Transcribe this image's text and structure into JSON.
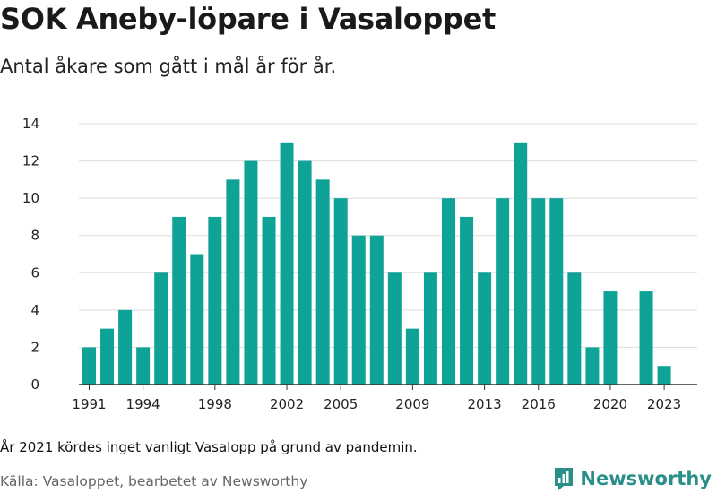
{
  "title": "SOK Aneby-löpare i Vasaloppet",
  "subtitle": "Antal åkare som gått i mål år för år.",
  "note": "År 2021 kördes inget vanligt Vasalopp på grund av pandemin.",
  "source": "Källa: Vasaloppet, bearbetet av Newsworthy",
  "brand": {
    "name": "Newsworthy",
    "color": "#2a8f88",
    "icon": "bar-chart-logo-icon"
  },
  "chart_data": {
    "type": "bar",
    "bar_color": "#0ea396",
    "grid": true,
    "ylim": [
      0,
      14
    ],
    "y_ticks": [
      0,
      2,
      4,
      6,
      8,
      10,
      12,
      14
    ],
    "x_tick_labels": [
      1991,
      1994,
      1998,
      2002,
      2005,
      2009,
      2013,
      2016,
      2020,
      2023
    ],
    "categories": [
      1991,
      1992,
      1993,
      1994,
      1995,
      1996,
      1997,
      1998,
      1999,
      2000,
      2001,
      2002,
      2003,
      2004,
      2005,
      2006,
      2007,
      2008,
      2009,
      2010,
      2011,
      2012,
      2013,
      2014,
      2015,
      2016,
      2017,
      2018,
      2019,
      2020,
      2021,
      2022,
      2023
    ],
    "values": [
      2,
      3,
      4,
      2,
      6,
      9,
      7,
      9,
      11,
      12,
      9,
      13,
      12,
      11,
      10,
      8,
      8,
      6,
      3,
      6,
      10,
      9,
      6,
      10,
      13,
      10,
      10,
      6,
      2,
      5,
      0,
      5,
      1
    ]
  }
}
